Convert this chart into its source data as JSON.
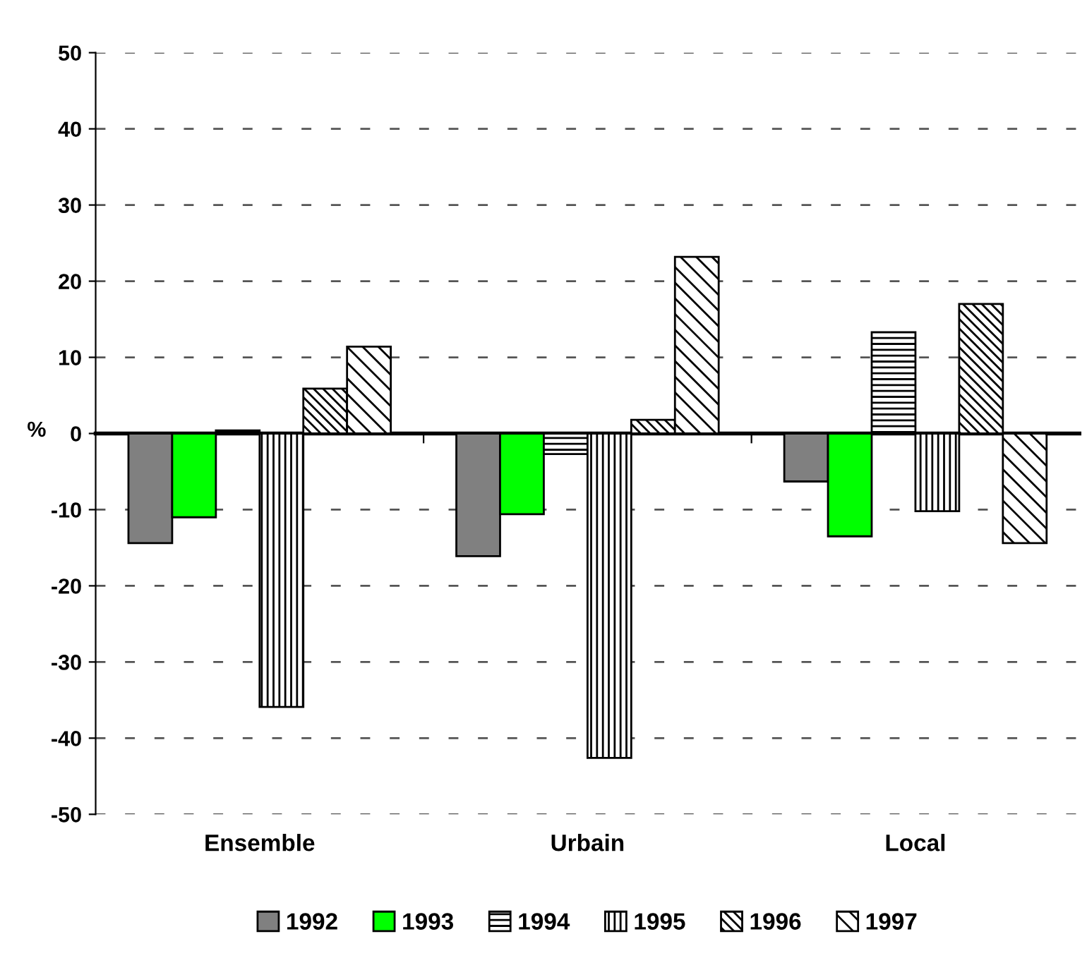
{
  "chart_data": {
    "type": "bar",
    "ylabel": "%",
    "categories": [
      "Ensemble",
      "Urbain",
      "Local"
    ],
    "series": [
      {
        "name": "1992",
        "color": "#808080",
        "values": [
          -14.4,
          -16.1,
          -6.3
        ]
      },
      {
        "name": "1993",
        "color": "#00ff00",
        "values": [
          -11.0,
          -10.6,
          -13.5
        ]
      },
      {
        "name": "1994",
        "color": "#000000",
        "values": [
          0.4,
          -2.7,
          13.3
        ]
      },
      {
        "name": "1995",
        "color": "#000000",
        "values": [
          -35.9,
          -42.6,
          -10.2
        ]
      },
      {
        "name": "1996",
        "color": "#000000",
        "values": [
          5.9,
          1.8,
          17.0
        ]
      },
      {
        "name": "1997",
        "color": "#000000",
        "values": [
          11.4,
          23.2,
          -14.4
        ]
      }
    ],
    "ylim": [
      -50,
      50
    ],
    "yticks": [
      -50,
      -40,
      -30,
      -20,
      -10,
      0,
      10,
      20,
      30,
      40,
      50
    ],
    "grid": "y",
    "legend": "bottom"
  }
}
